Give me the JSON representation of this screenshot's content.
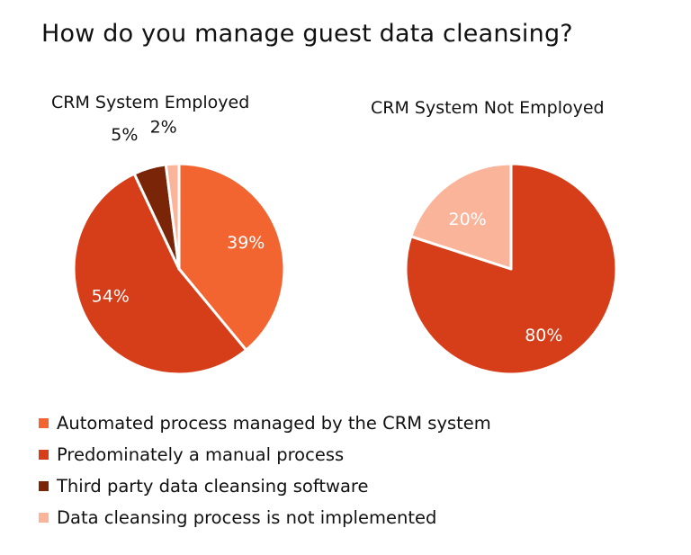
{
  "title": "How do you manage guest data cleansing?",
  "categories": [
    "Automated process managed by the CRM system",
    "Predominately a manual process",
    "Third party data cleansing software",
    "Data cleansing process is not implemented"
  ],
  "colors": [
    "#F26430",
    "#D63E1A",
    "#7A2508",
    "#F9B49A"
  ],
  "chart_data": [
    {
      "type": "pie",
      "title": "CRM System Employed",
      "slices": [
        {
          "label": "Automated process managed by the CRM system",
          "value": 39,
          "display": "39%"
        },
        {
          "label": "Predominately a manual process",
          "value": 54,
          "display": "54%"
        },
        {
          "label": "Third party data cleansing software",
          "value": 5,
          "display": "5%"
        },
        {
          "label": "Data cleansing process is not implemented",
          "value": 2,
          "display": "2%"
        }
      ],
      "legend": "bottom"
    },
    {
      "type": "pie",
      "title": "CRM System Not Employed",
      "slices": [
        {
          "label": "Predominately a manual process",
          "value": 80,
          "display": "80%"
        },
        {
          "label": "Data cleansing process is not implemented",
          "value": 20,
          "display": "20%"
        }
      ],
      "legend": "bottom"
    }
  ]
}
